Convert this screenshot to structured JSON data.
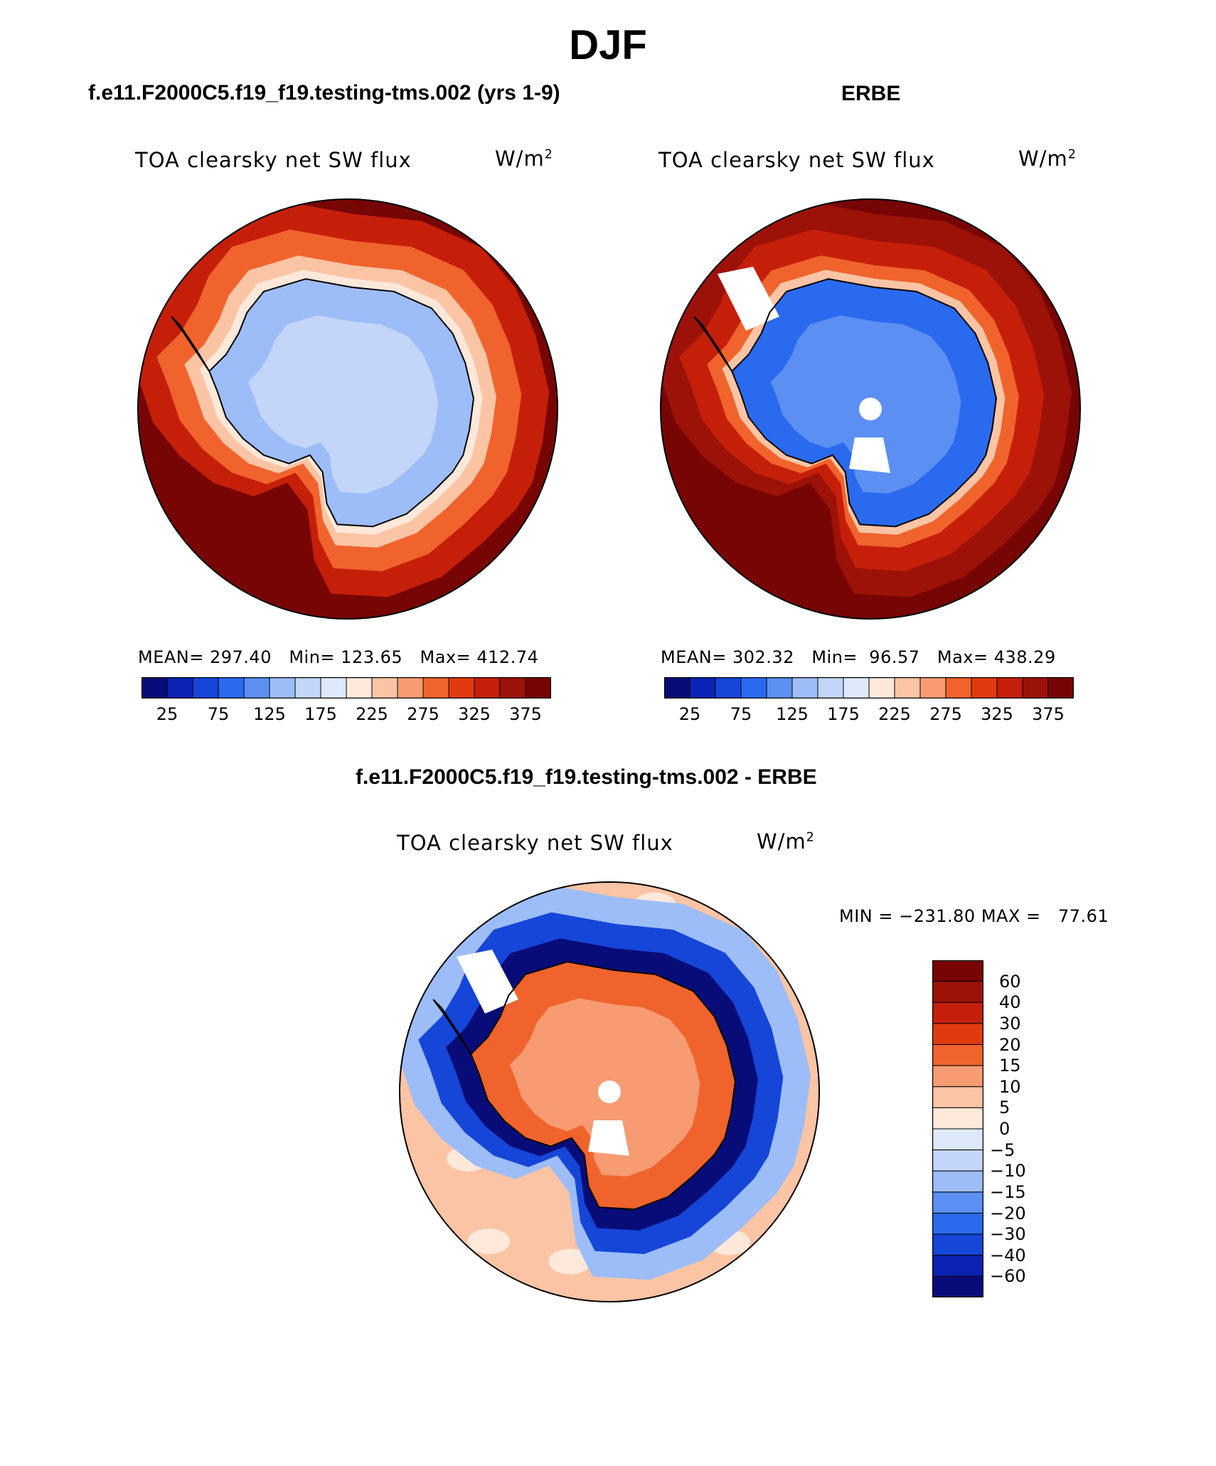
{
  "page": {
    "title": "DJF"
  },
  "chart_data": [
    {
      "type": "heatmap",
      "panel_title": "f.e11.F2000C5.f19_f19.testing-tms.002 (yrs 1-9)",
      "variable": "TOA clearsky net SW flux",
      "units_base": "W/m",
      "units_exp": "2",
      "projection": "south polar stereographic",
      "stats": {
        "mean": "297.40",
        "min": "123.65",
        "max": "412.74"
      },
      "stats_text": "MEAN= 297.40   Min= 123.65   Max= 412.74",
      "colorbar_tick_labels": [
        "25",
        "75",
        "125",
        "175",
        "225",
        "275",
        "325",
        "375"
      ],
      "colorbar_levels": [
        0,
        25,
        50,
        75,
        100,
        125,
        150,
        175,
        200,
        225,
        250,
        275,
        300,
        325,
        350,
        375,
        400
      ],
      "colors": [
        "#080c78",
        "#0a23b4",
        "#1546d8",
        "#2a6aee",
        "#5b8ff2",
        "#9dbdf8",
        "#c3d6f9",
        "#dde9fb",
        "#fde8da",
        "#fbc4a4",
        "#f79b72",
        "#f0632d",
        "#e23a10",
        "#c51f0a",
        "#9c1208",
        "#770504"
      ],
      "field": {
        "ocean": "#770504",
        "ring_outer": "#c51f0a",
        "ring_mid": "#f0632d",
        "ring_inner": "#fbc4a4",
        "edge": "#fde8da",
        "continent": "#9dbdf8",
        "interior": "#c3d6f9"
      }
    },
    {
      "type": "heatmap",
      "panel_title": "ERBE",
      "variable": "TOA clearsky net SW flux",
      "units_base": "W/m",
      "units_exp": "2",
      "projection": "south polar stereographic",
      "stats": {
        "mean": "302.32",
        "min": "96.57",
        "max": "438.29"
      },
      "stats_text": "MEAN= 302.32   Min=  96.57   Max= 438.29",
      "colorbar_tick_labels": [
        "25",
        "75",
        "125",
        "175",
        "225",
        "275",
        "325",
        "375"
      ],
      "colorbar_levels": [
        0,
        25,
        50,
        75,
        100,
        125,
        150,
        175,
        200,
        225,
        250,
        275,
        300,
        325,
        350,
        375,
        400
      ],
      "colors": [
        "#080c78",
        "#0a23b4",
        "#1546d8",
        "#2a6aee",
        "#5b8ff2",
        "#9dbdf8",
        "#c3d6f9",
        "#dde9fb",
        "#fde8da",
        "#fbc4a4",
        "#f79b72",
        "#f0632d",
        "#e23a10",
        "#c51f0a",
        "#9c1208",
        "#770504"
      ],
      "field": {
        "ocean": "#770504",
        "ring_outer": "#9c1208",
        "ring_mid": "#c51f0a",
        "ring_inner": "#f0632d",
        "edge": "#fbc4a4",
        "continent": "#2a6aee",
        "interior": "#5b8ff2"
      }
    },
    {
      "type": "heatmap",
      "panel_title": "f.e11.F2000C5.f19_f19.testing-tms.002 - ERBE",
      "variable": "TOA clearsky net SW flux",
      "units_base": "W/m",
      "units_exp": "2",
      "projection": "south polar stereographic",
      "stats": {
        "min": "−231.80",
        "max": "77.61"
      },
      "stats_text": "MIN = −231.80 MAX =   77.61",
      "colorbar_tick_labels": [
        "60",
        "40",
        "30",
        "20",
        "15",
        "10",
        "5",
        "0",
        "−5",
        "−10",
        "−15",
        "−20",
        "−30",
        "−40",
        "−60"
      ],
      "colorbar_levels_top_to_bottom": [
        60,
        40,
        30,
        20,
        15,
        10,
        5,
        0,
        -5,
        -10,
        -15,
        -20,
        -30,
        -40,
        -60
      ],
      "colors_top_to_bottom": [
        "#770504",
        "#9c1208",
        "#c51f0a",
        "#e23a10",
        "#f0632d",
        "#f79b72",
        "#fbc4a4",
        "#fde8da",
        "#dde9fb",
        "#c3d6f9",
        "#9dbdf8",
        "#5b8ff2",
        "#2a6aee",
        "#1546d8",
        "#0a23b4",
        "#080c78"
      ],
      "field": {
        "ocean": "#fbc4a4",
        "ocean_alt": "#fde8da",
        "ring_outer": "#9dbdf8",
        "ring_mid": "#1546d8",
        "ring_inner": "#080c78",
        "continent": "#f0632d",
        "interior": "#f79b72"
      }
    }
  ]
}
